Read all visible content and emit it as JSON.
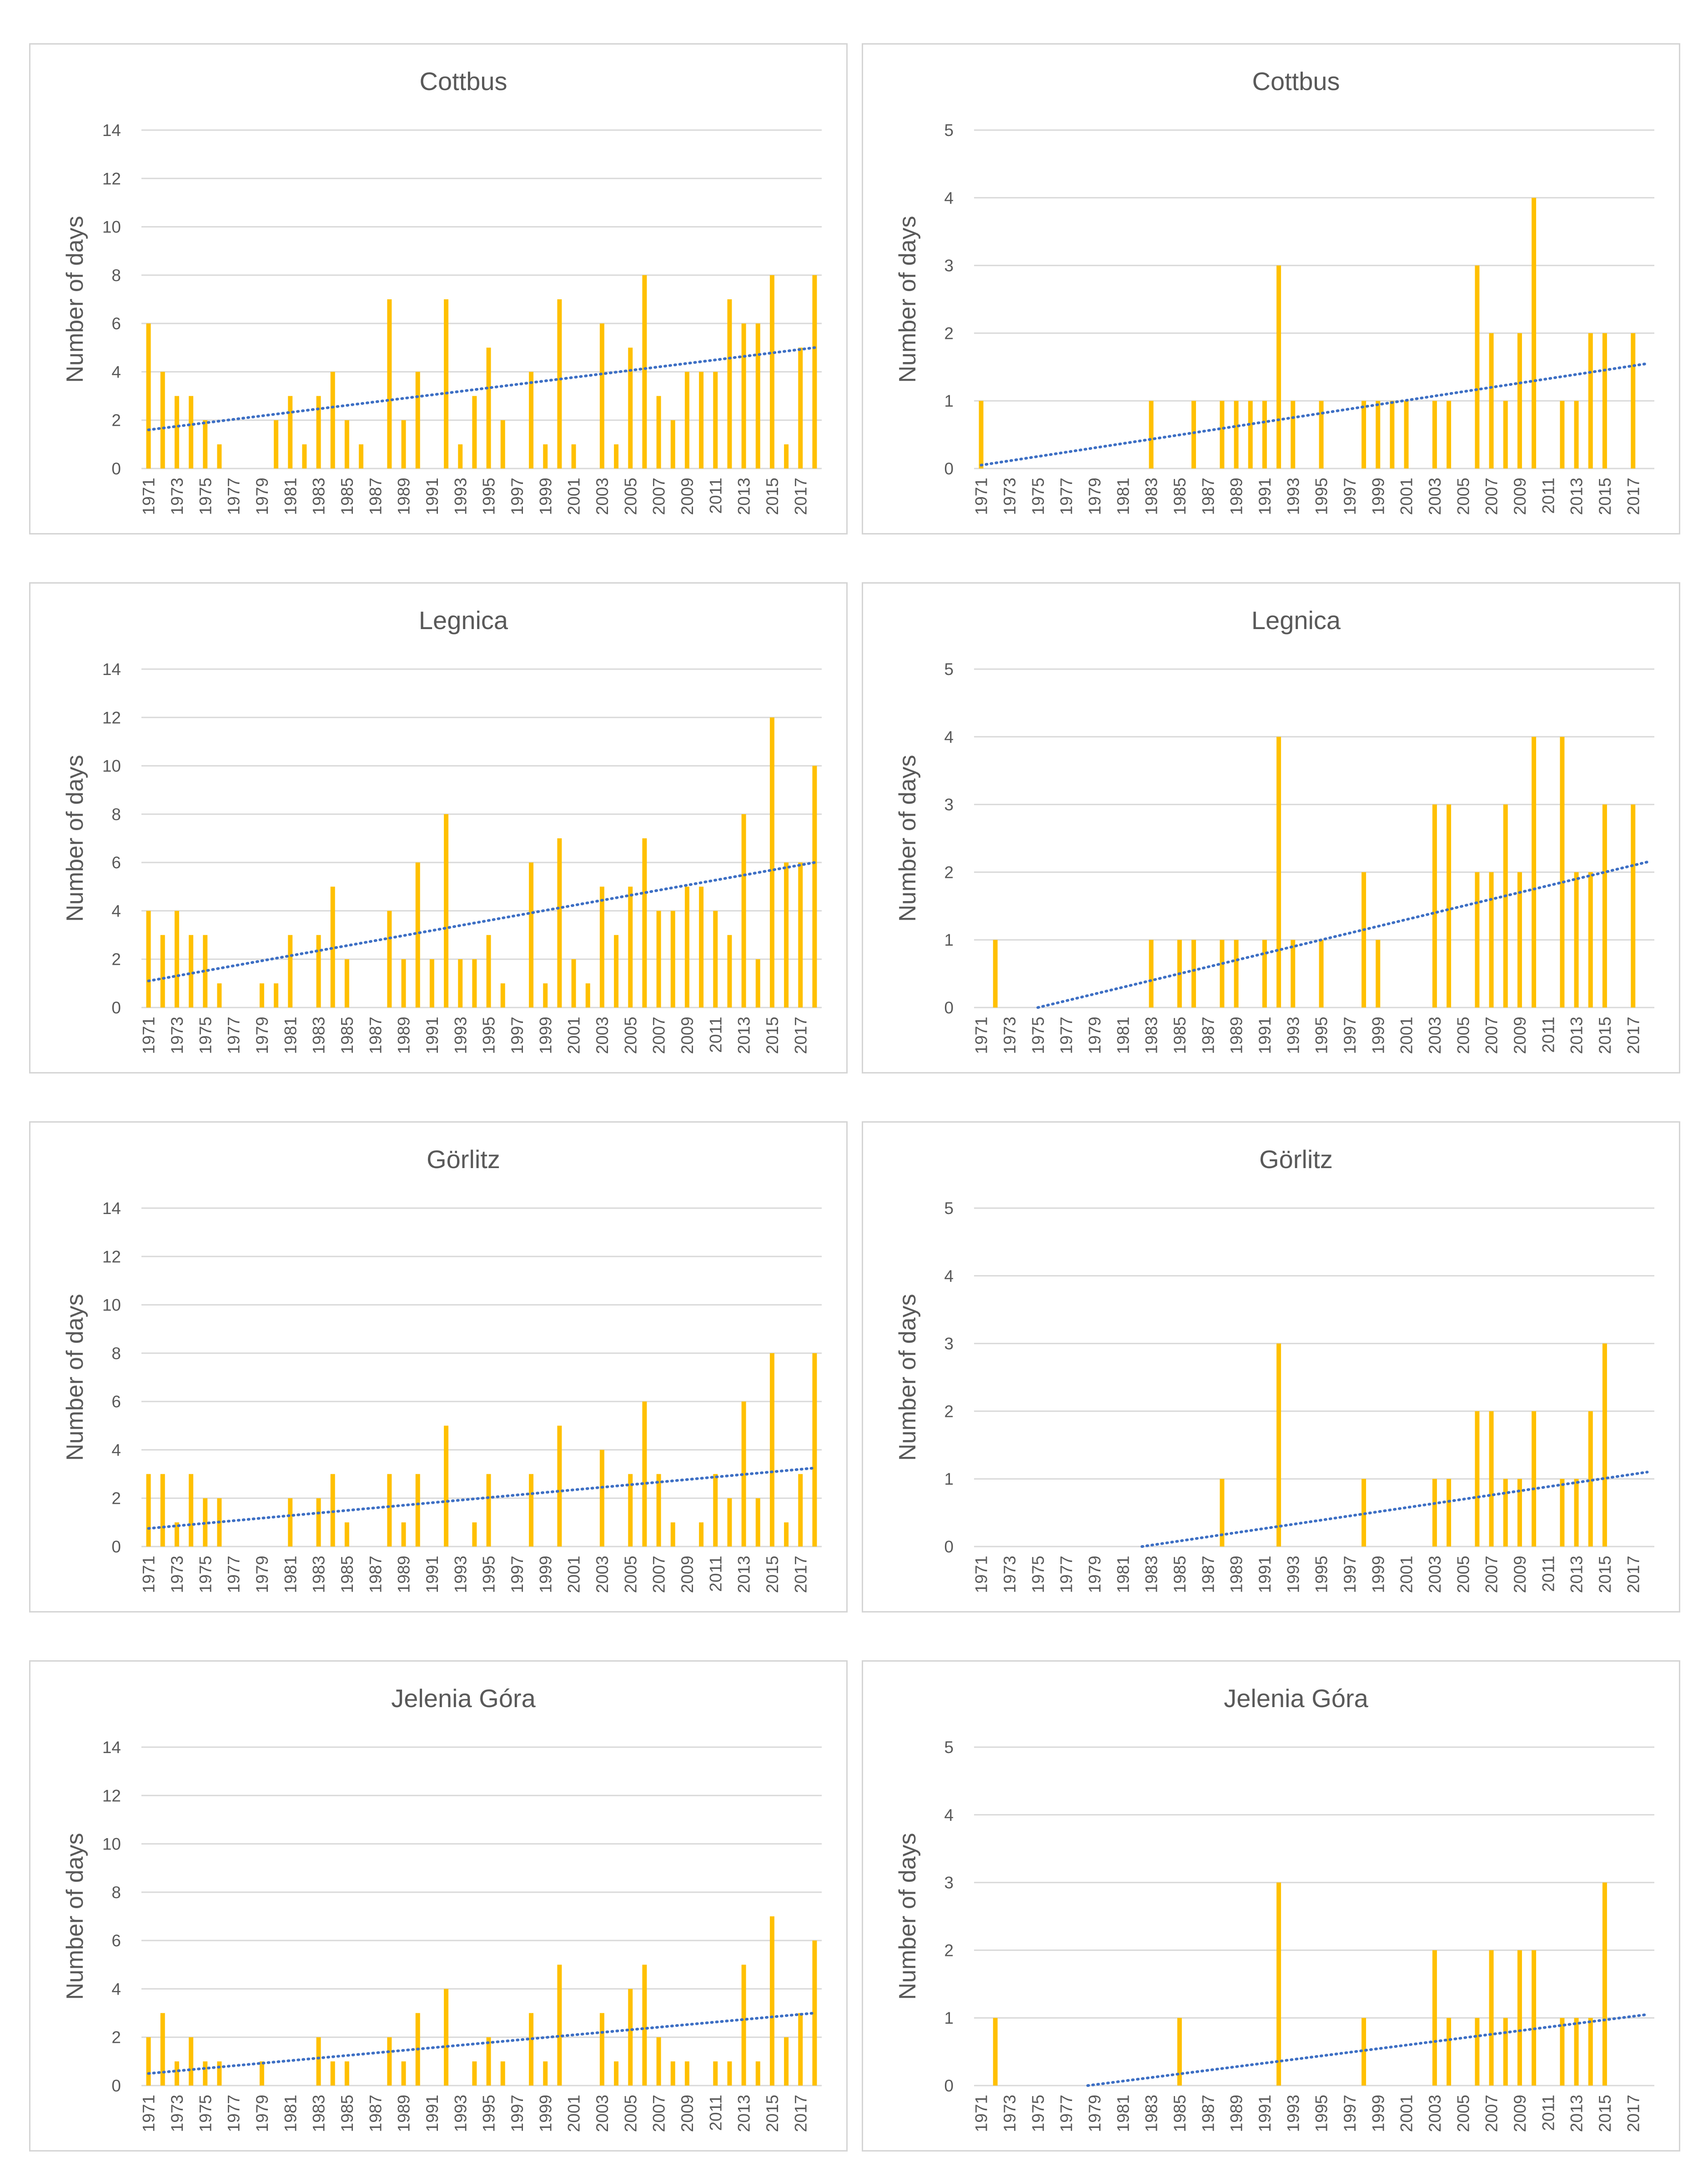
{
  "chart_data": [
    {
      "id": "cottbus-left",
      "type": "bar",
      "title": "Cottbus",
      "ylabel": "Number of days",
      "ylim": [
        0,
        14
      ],
      "yticks": [
        "0",
        "2",
        "4",
        "6",
        "8",
        "10",
        "12",
        "14"
      ],
      "xticks": [
        "1971",
        "1973",
        "1975",
        "1977",
        "1979",
        "1981",
        "1983",
        "1985",
        "1987",
        "1989",
        "1991",
        "1993",
        "1995",
        "1997",
        "1999",
        "2001",
        "2003",
        "2005",
        "2007",
        "2009",
        "2011",
        "2013",
        "2015",
        "2017"
      ],
      "first_year": 1971,
      "values": [
        6,
        4,
        3,
        3,
        2,
        1,
        0,
        0,
        0,
        2,
        3,
        1,
        3,
        4,
        2,
        1,
        0,
        7,
        2,
        4,
        0,
        7,
        1,
        3,
        5,
        2,
        0,
        4,
        1,
        7,
        1,
        0,
        6,
        1,
        5,
        8,
        3,
        2,
        4,
        4,
        4,
        7,
        6,
        6,
        8,
        1,
        5,
        8
      ],
      "trend": [
        1.6,
        5.0
      ]
    },
    {
      "id": "cottbus-right",
      "type": "bar",
      "title": "Cottbus",
      "ylabel": "Number of days",
      "ylim": [
        0,
        5
      ],
      "yticks": [
        "0",
        "1",
        "2",
        "3",
        "4",
        "5"
      ],
      "xticks": [
        "1971",
        "1973",
        "1975",
        "1977",
        "1979",
        "1981",
        "1983",
        "1985",
        "1987",
        "1989",
        "1991",
        "1993",
        "1995",
        "1997",
        "1999",
        "2001",
        "2003",
        "2005",
        "2007",
        "2009",
        "2011",
        "2013",
        "2015",
        "2017"
      ],
      "first_year": 1971,
      "values": [
        1,
        0,
        0,
        0,
        0,
        0,
        0,
        0,
        0,
        0,
        0,
        0,
        1,
        0,
        0,
        1,
        0,
        1,
        1,
        1,
        1,
        3,
        1,
        0,
        1,
        0,
        0,
        1,
        1,
        1,
        1,
        0,
        1,
        1,
        0,
        3,
        2,
        1,
        2,
        4,
        0,
        1,
        1,
        2,
        2,
        0,
        2,
        0
      ],
      "trend": [
        0.05,
        1.55
      ]
    },
    {
      "id": "legnica-left",
      "type": "bar",
      "title": "Legnica",
      "ylabel": "Number of days",
      "ylim": [
        0,
        14
      ],
      "yticks": [
        "0",
        "2",
        "4",
        "6",
        "8",
        "10",
        "12",
        "14"
      ],
      "xticks": [
        "1971",
        "1973",
        "1975",
        "1977",
        "1979",
        "1981",
        "1983",
        "1985",
        "1987",
        "1989",
        "1991",
        "1993",
        "1995",
        "1997",
        "1999",
        "2001",
        "2003",
        "2005",
        "2007",
        "2009",
        "2011",
        "2013",
        "2015",
        "2017"
      ],
      "first_year": 1971,
      "values": [
        4,
        3,
        4,
        3,
        3,
        1,
        0,
        0,
        1,
        1,
        3,
        0,
        3,
        5,
        2,
        0,
        0,
        4,
        2,
        6,
        2,
        8,
        2,
        2,
        3,
        1,
        0,
        6,
        1,
        7,
        2,
        1,
        5,
        3,
        5,
        7,
        4,
        4,
        5,
        5,
        4,
        3,
        8,
        2,
        12,
        6,
        6,
        10
      ],
      "trend": [
        1.1,
        6.0
      ]
    },
    {
      "id": "legnica-right",
      "type": "bar",
      "title": "Legnica",
      "ylabel": "Number of days",
      "ylim": [
        0,
        5
      ],
      "yticks": [
        "0",
        "1",
        "2",
        "3",
        "4",
        "5"
      ],
      "xticks": [
        "1971",
        "1973",
        "1975",
        "1977",
        "1979",
        "1981",
        "1983",
        "1985",
        "1987",
        "1989",
        "1991",
        "1993",
        "1995",
        "1997",
        "1999",
        "2001",
        "2003",
        "2005",
        "2007",
        "2009",
        "2011",
        "2013",
        "2015",
        "2017"
      ],
      "first_year": 1971,
      "values": [
        0,
        1,
        0,
        0,
        0,
        0,
        0,
        0,
        0,
        0,
        0,
        0,
        1,
        0,
        1,
        1,
        0,
        1,
        1,
        0,
        1,
        4,
        1,
        0,
        1,
        0,
        0,
        2,
        1,
        0,
        0,
        0,
        3,
        3,
        0,
        2,
        2,
        3,
        2,
        4,
        0,
        4,
        2,
        2,
        3,
        0,
        3,
        0
      ],
      "trend": [
        -0.2,
        2.15
      ]
    },
    {
      "id": "gorlitz-left",
      "type": "bar",
      "title": "Görlitz",
      "ylabel": "Number of days",
      "ylim": [
        0,
        14
      ],
      "yticks": [
        "0",
        "2",
        "4",
        "6",
        "8",
        "10",
        "12",
        "14"
      ],
      "xticks": [
        "1971",
        "1973",
        "1975",
        "1977",
        "1979",
        "1981",
        "1983",
        "1985",
        "1987",
        "1989",
        "1991",
        "1993",
        "1995",
        "1997",
        "1999",
        "2001",
        "2003",
        "2005",
        "2007",
        "2009",
        "2011",
        "2013",
        "2015",
        "2017"
      ],
      "first_year": 1971,
      "values": [
        3,
        3,
        1,
        3,
        2,
        2,
        0,
        0,
        0,
        0,
        2,
        0,
        2,
        3,
        1,
        0,
        0,
        3,
        1,
        3,
        0,
        5,
        0,
        1,
        3,
        0,
        0,
        3,
        0,
        5,
        0,
        0,
        4,
        0,
        3,
        6,
        3,
        1,
        0,
        1,
        3,
        2,
        6,
        2,
        8,
        1,
        3,
        8
      ],
      "trend": [
        0.75,
        3.25
      ]
    },
    {
      "id": "gorlitz-right",
      "type": "bar",
      "title": "Görlitz",
      "ylabel": "Number of days",
      "ylim": [
        0,
        5
      ],
      "yticks": [
        "0",
        "1",
        "2",
        "3",
        "4",
        "5"
      ],
      "xticks": [
        "1971",
        "1973",
        "1975",
        "1977",
        "1979",
        "1981",
        "1983",
        "1985",
        "1987",
        "1989",
        "1991",
        "1993",
        "1995",
        "1997",
        "1999",
        "2001",
        "2003",
        "2005",
        "2007",
        "2009",
        "2011",
        "2013",
        "2015",
        "2017"
      ],
      "first_year": 1971,
      "values": [
        0,
        0,
        0,
        0,
        0,
        0,
        0,
        0,
        0,
        0,
        0,
        0,
        0,
        0,
        0,
        0,
        0,
        1,
        0,
        0,
        0,
        3,
        0,
        0,
        0,
        0,
        0,
        1,
        0,
        0,
        0,
        0,
        1,
        1,
        0,
        2,
        2,
        1,
        1,
        2,
        0,
        1,
        1,
        2,
        3,
        0,
        0,
        0
      ],
      "trend": [
        -0.35,
        1.1
      ]
    },
    {
      "id": "jelenia-left",
      "type": "bar",
      "title": "Jelenia Góra",
      "ylabel": "Number of days",
      "ylim": [
        0,
        14
      ],
      "yticks": [
        "0",
        "2",
        "4",
        "6",
        "8",
        "10",
        "12",
        "14"
      ],
      "xticks": [
        "1971",
        "1973",
        "1975",
        "1977",
        "1979",
        "1981",
        "1983",
        "1985",
        "1987",
        "1989",
        "1991",
        "1993",
        "1995",
        "1997",
        "1999",
        "2001",
        "2003",
        "2005",
        "2007",
        "2009",
        "2011",
        "2013",
        "2015",
        "2017"
      ],
      "first_year": 1971,
      "values": [
        2,
        3,
        1,
        2,
        1,
        1,
        0,
        0,
        1,
        0,
        0,
        0,
        2,
        1,
        1,
        0,
        0,
        2,
        1,
        3,
        0,
        4,
        0,
        1,
        2,
        1,
        0,
        3,
        1,
        5,
        0,
        0,
        3,
        1,
        4,
        5,
        2,
        1,
        1,
        0,
        1,
        1,
        5,
        1,
        7,
        2,
        3,
        6
      ],
      "trend": [
        0.5,
        3.0
      ]
    },
    {
      "id": "jelenia-right",
      "type": "bar",
      "title": "Jelenia Góra",
      "ylabel": "Number of days",
      "ylim": [
        0,
        5
      ],
      "yticks": [
        "0",
        "1",
        "2",
        "3",
        "4",
        "5"
      ],
      "xticks": [
        "1971",
        "1973",
        "1975",
        "1977",
        "1979",
        "1981",
        "1983",
        "1985",
        "1987",
        "1989",
        "1991",
        "1993",
        "1995",
        "1997",
        "1999",
        "2001",
        "2003",
        "2005",
        "2007",
        "2009",
        "2011",
        "2013",
        "2015",
        "2017"
      ],
      "first_year": 1971,
      "values": [
        0,
        1,
        0,
        0,
        0,
        0,
        0,
        0,
        0,
        0,
        0,
        0,
        0,
        0,
        1,
        0,
        0,
        0,
        0,
        0,
        0,
        3,
        0,
        0,
        0,
        0,
        0,
        1,
        0,
        0,
        0,
        0,
        2,
        1,
        0,
        1,
        2,
        1,
        2,
        2,
        0,
        1,
        1,
        1,
        3,
        0,
        0,
        0
      ],
      "trend": [
        -0.2,
        1.05
      ]
    }
  ]
}
